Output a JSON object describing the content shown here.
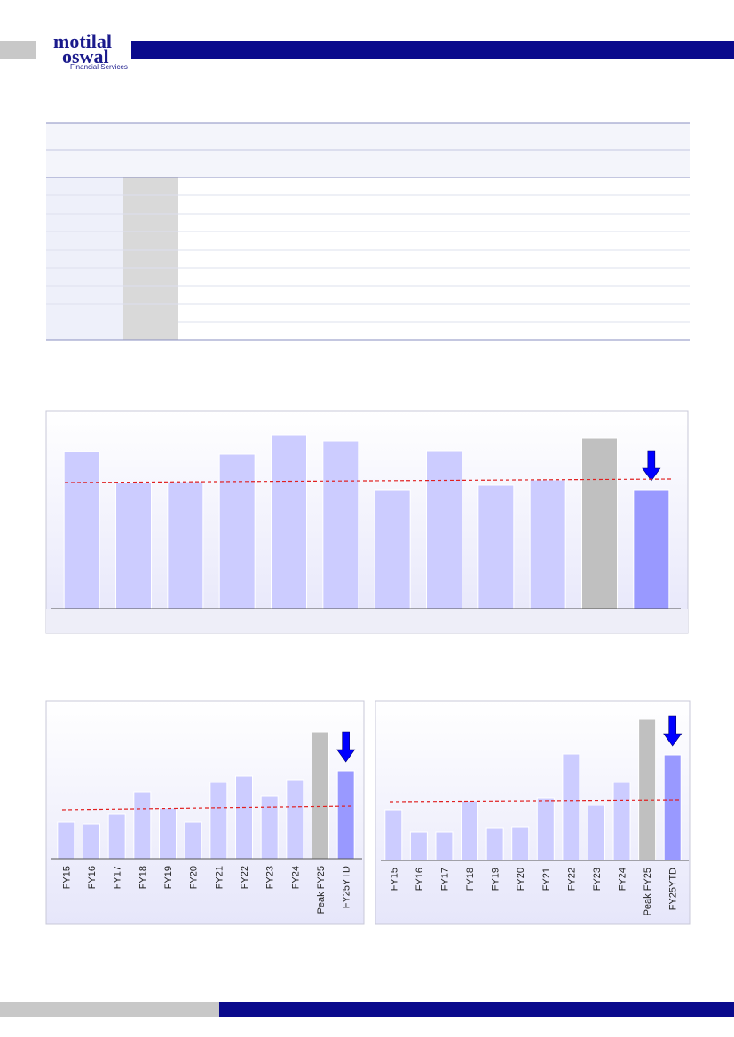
{
  "header": {
    "logo_line1": "motilal",
    "logo_line2": "oswal",
    "logo_tagline": "Financial Services"
  },
  "chart_data": [
    {
      "type": "bar",
      "categories": [
        null,
        null,
        null,
        null,
        null,
        null,
        null,
        null,
        null,
        null,
        null,
        null
      ],
      "values": [
        177,
        142,
        143,
        174,
        196,
        189,
        134,
        178,
        139,
        145,
        192,
        134
      ],
      "colors": [
        "#ccccff",
        "#ccccff",
        "#ccccff",
        "#ccccff",
        "#ccccff",
        "#ccccff",
        "#ccccff",
        "#ccccff",
        "#ccccff",
        "#ccccff",
        "#c0c0c0",
        "#9999ff"
      ],
      "ylim": [
        0,
        223
      ],
      "reference_line": [
        142,
        146
      ]
    },
    {
      "type": "bar",
      "categories": [
        "FY15",
        "FY16",
        "FY17",
        "FY18",
        "FY19",
        "FY20",
        "FY21",
        "FY22",
        "FY23",
        "FY24",
        "Peak FY25",
        "FY25YTD"
      ],
      "values": [
        41,
        39,
        50,
        75,
        57,
        41,
        86,
        93,
        71,
        89,
        143,
        99
      ],
      "colors": [
        "#ccccff",
        "#ccccff",
        "#ccccff",
        "#ccccff",
        "#ccccff",
        "#ccccff",
        "#ccccff",
        "#ccccff",
        "#ccccff",
        "#ccccff",
        "#c0c0c0",
        "#9999ff"
      ],
      "ylim": [
        0,
        178
      ],
      "reference_line": [
        55,
        59
      ]
    },
    {
      "type": "bar",
      "categories": [
        "FY15",
        "FY16",
        "FY17",
        "FY18",
        "FY19",
        "FY20",
        "FY21",
        "FY22",
        "FY23",
        "FY24",
        "Peak FY25",
        "FY25YTD"
      ],
      "values": [
        57,
        32,
        32,
        67,
        37,
        38,
        70,
        120,
        62,
        88,
        159,
        119
      ],
      "colors": [
        "#ccccff",
        "#ccccff",
        "#ccccff",
        "#ccccff",
        "#ccccff",
        "#ccccff",
        "#ccccff",
        "#ccccff",
        "#ccccff",
        "#ccccff",
        "#c0c0c0",
        "#9999ff"
      ],
      "ylim": [
        0,
        180
      ],
      "reference_line": [
        66,
        68
      ]
    }
  ]
}
